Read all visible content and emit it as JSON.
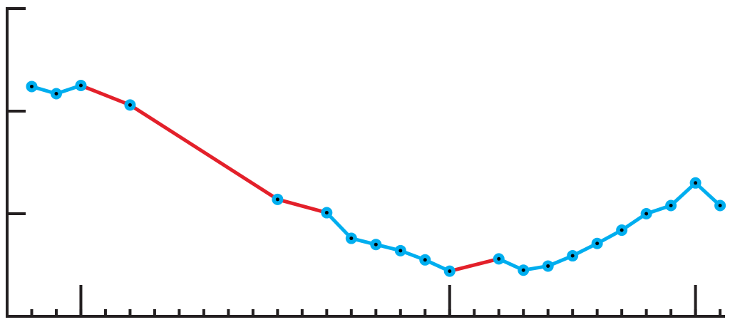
{
  "chart_data": {
    "type": "line",
    "x": [
      0,
      1,
      2,
      4,
      10,
      12,
      13,
      14,
      15,
      16,
      17,
      19,
      20,
      21,
      22,
      23,
      24,
      25,
      26,
      27,
      28
    ],
    "series": [
      {
        "color": "#00aeef",
        "gap_color": "#e3202a",
        "values": [
          2.24,
          2.17,
          2.25,
          2.06,
          1.14,
          1.01,
          0.76,
          0.7,
          0.64,
          0.55,
          0.44,
          0.56,
          0.45,
          0.49,
          0.59,
          0.71,
          0.84,
          1.0,
          1.08,
          1.3,
          1.08
        ]
      }
    ],
    "xlim": [
      -1,
      28.2
    ],
    "xticks": [
      0,
      1,
      2,
      3,
      4,
      5,
      6,
      7,
      8,
      9,
      10,
      11,
      12,
      13,
      14,
      15,
      16,
      17,
      18,
      19,
      20,
      21,
      22,
      23,
      24,
      25,
      26,
      27,
      28
    ],
    "major_xticks": [
      2,
      17,
      27
    ],
    "ylim": [
      0,
      3
    ],
    "yticks": [
      0,
      1,
      2,
      3
    ],
    "axis_color": "#231f20"
  }
}
